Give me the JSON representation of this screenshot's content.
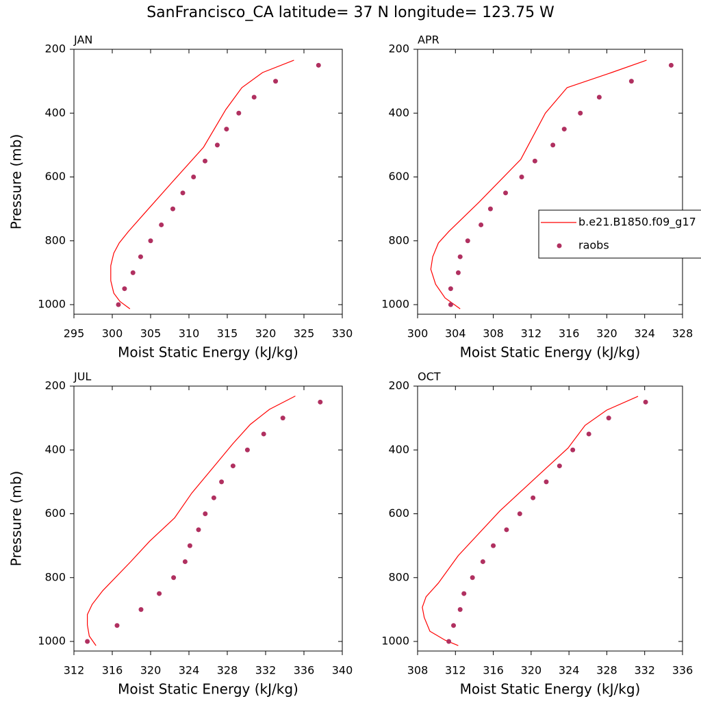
{
  "title": "SanFrancisco_CA  latitude= 37 N longitude= 123.75 W",
  "chart_data": [
    {
      "type": "line",
      "title": "JAN",
      "xlabel": "Moist Static Energy (kJ/kg)",
      "ylabel": "Pressure (mb)",
      "xlim": [
        295,
        330
      ],
      "xticks": [
        295,
        300,
        305,
        310,
        315,
        320,
        325,
        330
      ],
      "ylim": [
        1030,
        200
      ],
      "yticks": [
        200,
        400,
        600,
        800,
        1000
      ],
      "legend": false,
      "series": [
        {
          "mode": "line",
          "color": "#ff0000",
          "x": [
            302.3,
            301.0,
            300.2,
            299.8,
            299.8,
            300.2,
            300.9,
            302.1,
            304.3,
            307.9,
            311.9,
            314.8,
            316.9,
            319.6,
            323.7
          ],
          "y": [
            1013,
            990,
            964,
            925,
            878,
            839,
            807,
            771,
            711,
            614,
            507,
            389,
            320,
            273,
            234
          ]
        },
        {
          "mode": "markers",
          "color": "#b03060",
          "x": [
            300.8,
            301.6,
            302.7,
            303.7,
            305.0,
            306.4,
            307.9,
            309.2,
            310.6,
            312.1,
            313.7,
            314.9,
            316.5,
            318.5,
            321.3,
            326.9
          ],
          "y": [
            1000,
            950,
            900,
            850,
            800,
            750,
            700,
            650,
            600,
            550,
            500,
            450,
            400,
            350,
            300,
            250
          ]
        }
      ]
    },
    {
      "type": "line",
      "title": "APR",
      "xlabel": "Moist Static Energy (kJ/kg)",
      "xlim": [
        300,
        328
      ],
      "xticks": [
        300,
        304,
        308,
        312,
        316,
        320,
        324,
        328
      ],
      "ylim": [
        1030,
        200
      ],
      "yticks": [
        200,
        400,
        600,
        800,
        1000
      ],
      "legend": true,
      "series": [
        {
          "name": "b.e21.B1850.f09_g17",
          "mode": "line",
          "color": "#ff0000",
          "x": [
            304.5,
            302.9,
            301.9,
            301.4,
            301.6,
            302.2,
            303.3,
            306.5,
            310.9,
            313.5,
            315.8,
            320.5,
            324.2
          ],
          "y": [
            1013,
            979,
            936,
            889,
            850,
            807,
            771,
            679,
            545,
            400,
            320,
            273,
            234
          ]
        },
        {
          "name": "raobs",
          "mode": "markers",
          "color": "#b03060",
          "x": [
            303.5,
            303.5,
            304.3,
            304.5,
            305.3,
            306.7,
            307.7,
            309.3,
            311.0,
            312.4,
            314.3,
            315.5,
            317.2,
            319.2,
            322.6,
            326.8
          ],
          "y": [
            1000,
            950,
            900,
            850,
            800,
            750,
            700,
            650,
            600,
            550,
            500,
            450,
            400,
            350,
            300,
            250
          ]
        }
      ]
    },
    {
      "type": "line",
      "title": "JUL",
      "xlabel": "Moist Static Energy (kJ/kg)",
      "ylabel": "Pressure (mb)",
      "xlim": [
        312,
        340
      ],
      "xticks": [
        312,
        316,
        320,
        324,
        328,
        332,
        336,
        340
      ],
      "ylim": [
        1030,
        200
      ],
      "yticks": [
        200,
        400,
        600,
        800,
        1000
      ],
      "legend": false,
      "series": [
        {
          "mode": "line",
          "color": "#ff0000",
          "x": [
            314.3,
            313.6,
            313.4,
            313.4,
            313.9,
            315.0,
            317.9,
            319.9,
            322.5,
            324.3,
            326.8,
            328.6,
            330.4,
            332.4,
            335.1
          ],
          "y": [
            1013,
            983,
            948,
            916,
            884,
            841,
            751,
            686,
            613,
            535,
            445,
            380,
            320,
            273,
            231
          ]
        },
        {
          "mode": "markers",
          "color": "#b03060",
          "x": [
            313.4,
            316.5,
            319.0,
            320.9,
            322.4,
            323.6,
            324.1,
            325.0,
            325.7,
            326.6,
            327.4,
            328.6,
            330.1,
            331.8,
            333.8,
            337.7
          ],
          "y": [
            1000,
            950,
            900,
            850,
            800,
            750,
            700,
            650,
            600,
            550,
            500,
            450,
            400,
            350,
            300,
            250
          ]
        }
      ]
    },
    {
      "type": "line",
      "title": "OCT",
      "xlabel": "Moist Static Energy (kJ/kg)",
      "xlim": [
        308,
        336
      ],
      "xticks": [
        308,
        312,
        316,
        320,
        324,
        328,
        332,
        336
      ],
      "ylim": [
        1030,
        200
      ],
      "yticks": [
        200,
        400,
        600,
        800,
        1000
      ],
      "legend": false,
      "series": [
        {
          "mode": "line",
          "color": "#ff0000",
          "x": [
            312.3,
            310.9,
            309.3,
            308.7,
            308.5,
            308.9,
            310.2,
            312.3,
            316.7,
            321.0,
            323.9,
            325.7,
            328.0,
            331.3
          ],
          "y": [
            1013,
            996,
            968,
            925,
            893,
            860,
            817,
            731,
            591,
            473,
            394,
            323,
            275,
            232
          ]
        },
        {
          "mode": "markers",
          "color": "#b03060",
          "x": [
            311.3,
            311.8,
            312.5,
            312.9,
            313.8,
            314.9,
            316.0,
            317.4,
            318.8,
            320.2,
            321.6,
            323.0,
            324.4,
            326.1,
            328.2,
            332.1
          ],
          "y": [
            1000,
            950,
            900,
            850,
            800,
            750,
            700,
            650,
            600,
            550,
            500,
            450,
            400,
            350,
            300,
            250
          ]
        }
      ]
    }
  ]
}
